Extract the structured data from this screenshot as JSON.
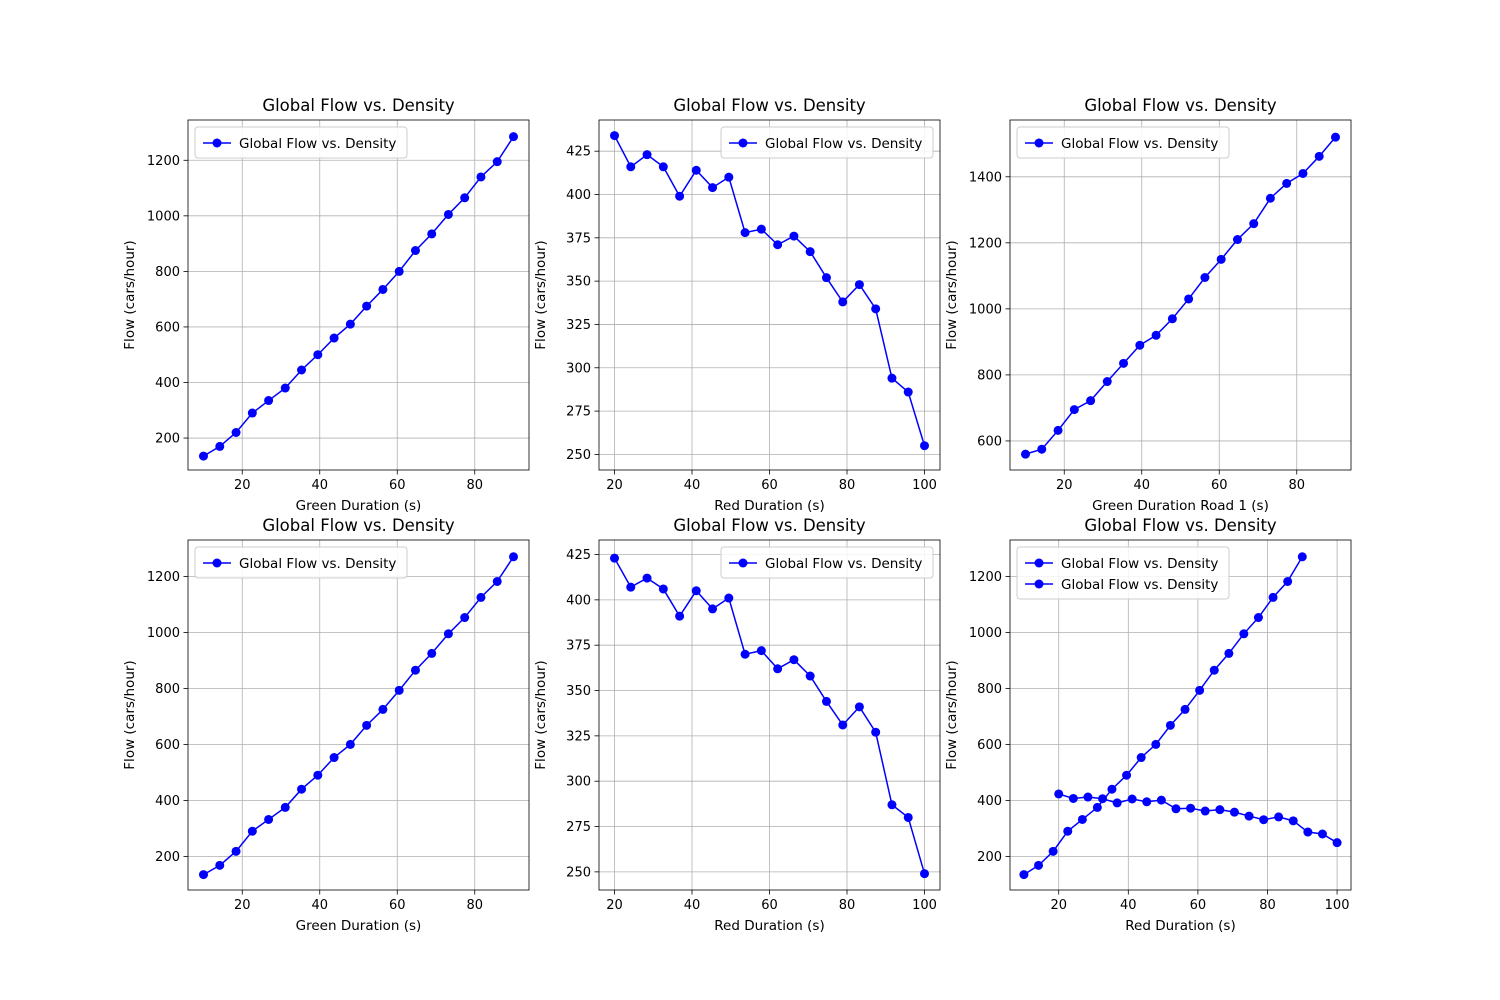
{
  "figure": {
    "colors": {
      "line": "#0000ff",
      "grid": "#b0b0b0",
      "axes": "#000000",
      "legend_border": "#cccccc"
    }
  },
  "chart_data": [
    {
      "type": "line",
      "title": "Global Flow vs. Density",
      "xlabel": "Green Duration (s)",
      "ylabel": "Flow (cars/hour)",
      "xlim": [
        6,
        94
      ],
      "ylim": [
        85,
        1345
      ],
      "xticks": [
        20,
        40,
        60,
        80
      ],
      "yticks": [
        200,
        400,
        600,
        800,
        1000,
        1200
      ],
      "grid": true,
      "legend_loc": "upper left",
      "series": [
        {
          "name": "Global Flow vs. Density",
          "marker": "circle",
          "x": [
            10,
            14.2,
            18.4,
            22.6,
            26.8,
            31.1,
            35.3,
            39.5,
            43.7,
            47.9,
            52.1,
            56.3,
            60.5,
            64.7,
            68.9,
            73.2,
            77.4,
            81.6,
            85.8,
            90
          ],
          "y": [
            135,
            170,
            220,
            290,
            335,
            380,
            445,
            500,
            560,
            610,
            675,
            735,
            800,
            875,
            935,
            1005,
            1065,
            1140,
            1195,
            1285
          ]
        }
      ]
    },
    {
      "type": "line",
      "title": "Global Flow vs. Density",
      "xlabel": "Red Duration (s)",
      "ylabel": "Flow (cars/hour)",
      "xlim": [
        16,
        104
      ],
      "ylim": [
        241,
        443
      ],
      "xticks": [
        20,
        40,
        60,
        80,
        100
      ],
      "yticks": [
        250,
        275,
        300,
        325,
        350,
        375,
        400,
        425
      ],
      "grid": true,
      "legend_loc": "upper right",
      "series": [
        {
          "name": "Global Flow vs. Density",
          "marker": "circle",
          "x": [
            20,
            24.2,
            28.4,
            32.6,
            36.8,
            41.1,
            45.3,
            49.5,
            53.7,
            57.9,
            62.1,
            66.3,
            70.5,
            74.7,
            78.9,
            83.2,
            87.4,
            91.6,
            95.8,
            100
          ],
          "y": [
            434,
            416,
            423,
            416,
            399,
            414,
            404,
            410,
            378,
            380,
            371,
            376,
            367,
            352,
            338,
            348,
            334,
            294,
            286,
            255
          ]
        }
      ]
    },
    {
      "type": "line",
      "title": "Global Flow vs. Density",
      "xlabel": "Green Duration Road 1 (s)",
      "ylabel": "Flow (cars/hour)",
      "xlim": [
        6,
        94
      ],
      "ylim": [
        512,
        1572
      ],
      "xticks": [
        20,
        40,
        60,
        80
      ],
      "yticks": [
        600,
        800,
        1000,
        1200,
        1400
      ],
      "grid": true,
      "legend_loc": "upper left",
      "series": [
        {
          "name": "Global Flow vs. Density",
          "marker": "circle",
          "x": [
            10,
            14.2,
            18.4,
            22.6,
            26.8,
            31.1,
            35.3,
            39.5,
            43.7,
            47.9,
            52.1,
            56.3,
            60.5,
            64.7,
            68.9,
            73.2,
            77.4,
            81.6,
            85.8,
            90
          ],
          "y": [
            560,
            575,
            632,
            695,
            722,
            780,
            835,
            890,
            920,
            970,
            1030,
            1095,
            1150,
            1210,
            1258,
            1335,
            1380,
            1410,
            1462,
            1520
          ]
        }
      ]
    },
    {
      "type": "line",
      "title": "Global Flow vs. Density",
      "xlabel": "Green Duration (s)",
      "ylabel": "Flow (cars/hour)",
      "xlim": [
        6,
        94
      ],
      "ylim": [
        80,
        1330
      ],
      "xticks": [
        20,
        40,
        60,
        80
      ],
      "yticks": [
        200,
        400,
        600,
        800,
        1000,
        1200
      ],
      "grid": true,
      "legend_loc": "upper left",
      "series": [
        {
          "name": "Global Flow vs. Density",
          "marker": "circle",
          "x": [
            10,
            14.2,
            18.4,
            22.6,
            26.8,
            31.1,
            35.3,
            39.5,
            43.7,
            47.9,
            52.1,
            56.3,
            60.5,
            64.7,
            68.9,
            73.2,
            77.4,
            81.6,
            85.8,
            90
          ],
          "y": [
            135,
            168,
            218,
            290,
            332,
            375,
            440,
            490,
            553,
            600,
            668,
            725,
            793,
            865,
            925,
            995,
            1053,
            1125,
            1182,
            1270
          ]
        }
      ]
    },
    {
      "type": "line",
      "title": "Global Flow vs. Density",
      "xlabel": "Red Duration (s)",
      "ylabel": "Flow (cars/hour)",
      "xlim": [
        16,
        104
      ],
      "ylim": [
        240,
        433
      ],
      "xticks": [
        20,
        40,
        60,
        80,
        100
      ],
      "yticks": [
        250,
        275,
        300,
        325,
        350,
        375,
        400,
        425
      ],
      "grid": true,
      "legend_loc": "upper right",
      "series": [
        {
          "name": "Global Flow vs. Density",
          "marker": "circle",
          "x": [
            20,
            24.2,
            28.4,
            32.6,
            36.8,
            41.1,
            45.3,
            49.5,
            53.7,
            57.9,
            62.1,
            66.3,
            70.5,
            74.7,
            78.9,
            83.2,
            87.4,
            91.6,
            95.8,
            100
          ],
          "y": [
            423,
            407,
            412,
            406,
            391,
            405,
            395,
            401,
            370,
            372,
            362,
            367,
            358,
            344,
            331,
            341,
            327,
            287,
            280,
            249
          ]
        }
      ]
    },
    {
      "type": "line",
      "title": "Global Flow vs. Density",
      "xlabel": "Red Duration (s)",
      "ylabel": "Flow (cars/hour)",
      "xlim": [
        6,
        104
      ],
      "ylim": [
        80,
        1330
      ],
      "xticks": [
        20,
        40,
        60,
        80,
        100
      ],
      "yticks": [
        200,
        400,
        600,
        800,
        1000,
        1200
      ],
      "grid": true,
      "legend_loc": "upper left",
      "series": [
        {
          "name": "Global Flow vs. Density",
          "marker": "circle",
          "x": [
            10,
            14.2,
            18.4,
            22.6,
            26.8,
            31.1,
            35.3,
            39.5,
            43.7,
            47.9,
            52.1,
            56.3,
            60.5,
            64.7,
            68.9,
            73.2,
            77.4,
            81.6,
            85.8,
            90
          ],
          "y": [
            135,
            168,
            218,
            290,
            332,
            375,
            440,
            490,
            553,
            600,
            668,
            725,
            793,
            865,
            925,
            995,
            1053,
            1125,
            1182,
            1270
          ]
        },
        {
          "name": "Global Flow vs. Density",
          "marker": "circle",
          "x": [
            20,
            24.2,
            28.4,
            32.6,
            36.8,
            41.1,
            45.3,
            49.5,
            53.7,
            57.9,
            62.1,
            66.3,
            70.5,
            74.7,
            78.9,
            83.2,
            87.4,
            91.6,
            95.8,
            100
          ],
          "y": [
            423,
            407,
            412,
            406,
            391,
            405,
            395,
            401,
            370,
            372,
            362,
            367,
            358,
            344,
            331,
            341,
            327,
            287,
            280,
            249
          ]
        }
      ]
    }
  ]
}
